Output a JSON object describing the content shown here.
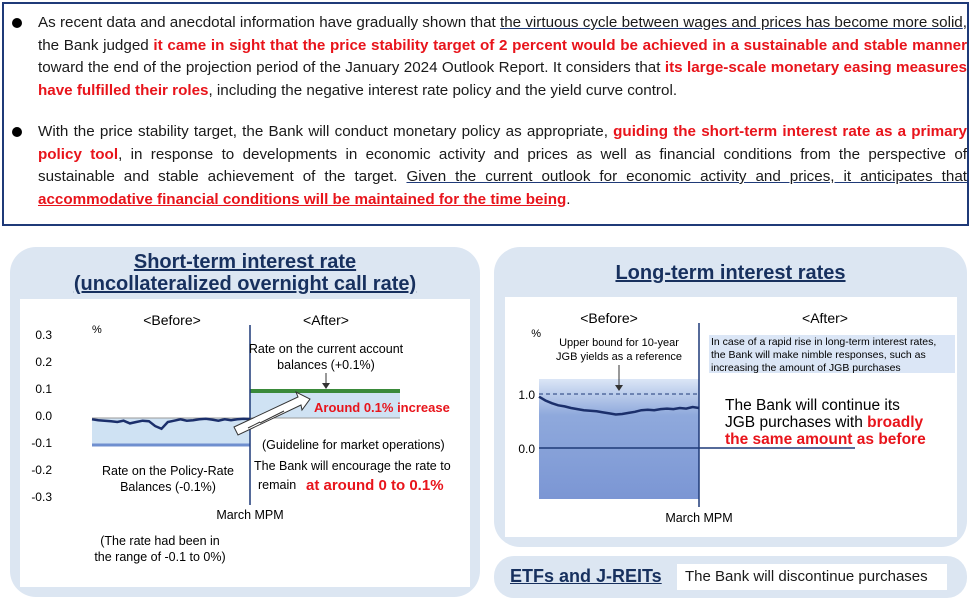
{
  "top": {
    "b1": {
      "p1": "As recent data and anecdotal information have gradually shown that ",
      "u1": "the virtuous cycle between wages and prices has become more solid",
      "p2": ", the Bank judged ",
      "r1": "it came in sight that the price stability target of 2 percent would be achieved in a sustainable and stable manner",
      "p3": " toward the end of the projection period of the January 2024 Outlook Report. It considers that ",
      "r2": "its large-scale monetary easing measures have fulfilled their roles",
      "p4": ", including the negative interest rate policy and the yield curve control."
    },
    "b2": {
      "p1": "With the price stability target, the Bank will conduct monetary policy as appropriate, ",
      "r1": "guiding the short-term interest rate as a primary policy tool",
      "p2": ", in response to developments in economic activity and prices as well as financial conditions from the perspective of sustainable and stable achievement of the target. ",
      "u1": "Given the current outlook for economic activity and prices, it anticipates that ",
      "r2": "accommodative financial conditions will be maintained for the time being",
      "p3": "."
    }
  },
  "short": {
    "title1": "Short-term interest rate",
    "title2": "(uncollateralized overnight call rate)",
    "before": "<Before>",
    "after": "<After>",
    "unit": "%",
    "ca1": "Rate on the current account",
    "ca2": "balances (+0.1%)",
    "increase": "Around 0.1% increase",
    "guide": "(Guideline for market operations)",
    "enc1": "The Bank will encourage the rate to",
    "enc2": "remain",
    "enc3": "at around 0 to 0.1%",
    "prb1": "Rate on the Policy-Rate",
    "prb2": "Balances (-0.1%)",
    "mpm": "March MPM",
    "note1": "(The rate had been in",
    "note2": "the range of -0.1 to 0%)"
  },
  "long": {
    "title": "Long-term interest rates",
    "before": "<Before>",
    "after": "<After>",
    "unit": "%",
    "ub1": "Upper bound for 10-year",
    "ub2": "JGB yields as a reference",
    "rr1": "In case of a rapid rise in long-term interest rates,",
    "rr2": "the Bank will make nimble responses, such as",
    "rr3": "increasing the amount of JGB purchases",
    "cont1": "The Bank will continue its",
    "cont2a": "JGB purchases with ",
    "cont2b": "broadly",
    "cont3": "the same amount as before",
    "mpm": "March MPM"
  },
  "etf": {
    "title": "ETFs and J-REITs",
    "text": "The Bank will discontinue purchases"
  },
  "chart_data": [
    {
      "type": "line",
      "title": "Short-term interest rate (uncollateralized overnight call rate)",
      "ylabel": "%",
      "ylim": [
        -0.3,
        0.3
      ],
      "yticks": [
        "0.3",
        "0.2",
        "0.1",
        "0.0",
        "-0.1",
        "-0.2",
        "-0.3"
      ],
      "series": [
        {
          "name": "call rate",
          "values": [
            -0.005,
            -0.008,
            -0.01,
            -0.012,
            -0.015,
            -0.01,
            -0.02,
            -0.015,
            -0.01,
            -0.012,
            -0.03,
            -0.04,
            -0.015,
            -0.01,
            -0.005,
            -0.01,
            -0.008,
            -0.005,
            -0.003,
            -0.006,
            -0.01,
            -0.005,
            -0.008,
            -0.005,
            -0.003,
            -0.004
          ]
        }
      ],
      "before_policy_rate": -0.1,
      "after_current_account_rate": 0.1
    },
    {
      "type": "area",
      "title": "Long-term interest rates",
      "ylabel": "%",
      "yticks": [
        "1.0",
        "0.0"
      ],
      "upper_bound": 1.0,
      "series": [
        {
          "name": "10-year JGB yields",
          "values": [
            0.95,
            0.88,
            0.83,
            0.79,
            0.77,
            0.74,
            0.72,
            0.7,
            0.69,
            0.68,
            0.66,
            0.64,
            0.62,
            0.63,
            0.65,
            0.67,
            0.7,
            0.71,
            0.7,
            0.72,
            0.73,
            0.72,
            0.74,
            0.73,
            0.76,
            0.74
          ]
        }
      ]
    }
  ]
}
